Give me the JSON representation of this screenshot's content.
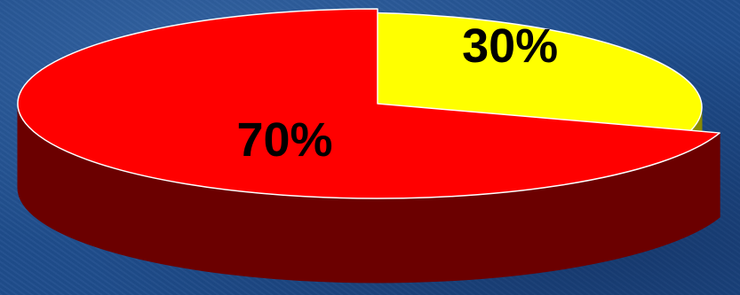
{
  "chart_data": {
    "type": "pie",
    "style": "3d",
    "slices": [
      {
        "label": "30%",
        "value": 30,
        "color": "#ffff00",
        "side_color": "#8a8a00"
      },
      {
        "label": "70%",
        "value": 70,
        "color": "#ff0000",
        "side_color": "#6b0000"
      }
    ],
    "title": "",
    "legend": "none"
  },
  "background_color": "#1f4d8c"
}
